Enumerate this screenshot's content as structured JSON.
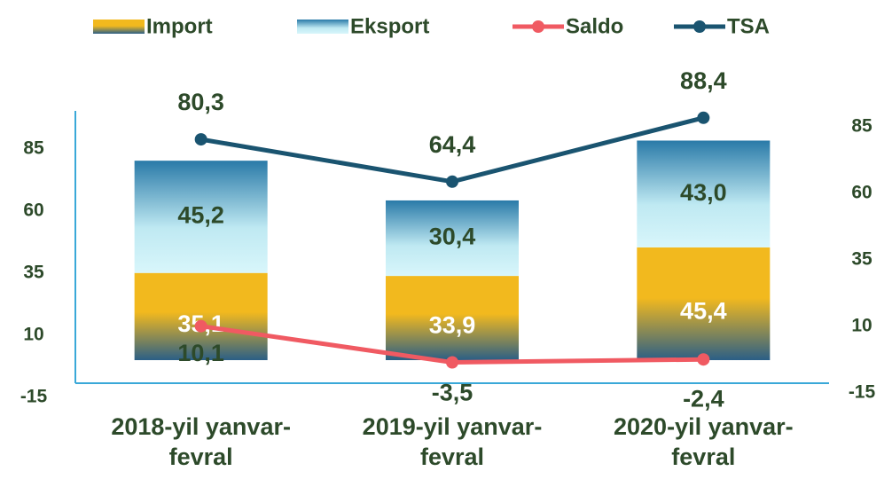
{
  "chart_data": {
    "type": "bar",
    "categories": [
      "2018-yil yanvar-fevral",
      "2019-yil yanvar-fevral",
      "2020-yil yanvar-fevral"
    ],
    "series": [
      {
        "name": "Import",
        "color": "#f2b91e",
        "values": [
          35.1,
          33.9,
          45.4
        ],
        "value_labels": [
          "35,1",
          "33,9",
          "45,4"
        ]
      },
      {
        "name": "Eksport",
        "color": "#2a7aa8",
        "values": [
          45.2,
          30.4,
          43.0
        ],
        "value_labels": [
          "45,2",
          "30,4",
          "43,0"
        ]
      },
      {
        "name": "Saldo",
        "type": "line",
        "axis": "y2",
        "color": "#f05a62",
        "values": [
          10.1,
          -3.5,
          -2.4
        ],
        "value_labels": [
          "10,1",
          "-3,5",
          "-2,4"
        ]
      },
      {
        "name": "TSA",
        "type": "line",
        "axis": "y2",
        "color": "#1a5470",
        "values": [
          80.3,
          64.4,
          88.4
        ],
        "value_labels": [
          "80,3",
          "64,4",
          "88,4"
        ]
      }
    ],
    "ylim": [
      -15,
      85
    ],
    "yticks": [
      -15,
      10,
      35,
      60,
      85
    ],
    "y2lim": [
      -15,
      85
    ],
    "y2ticks": [
      -15,
      10,
      35,
      60,
      85
    ],
    "stacked": true
  }
}
